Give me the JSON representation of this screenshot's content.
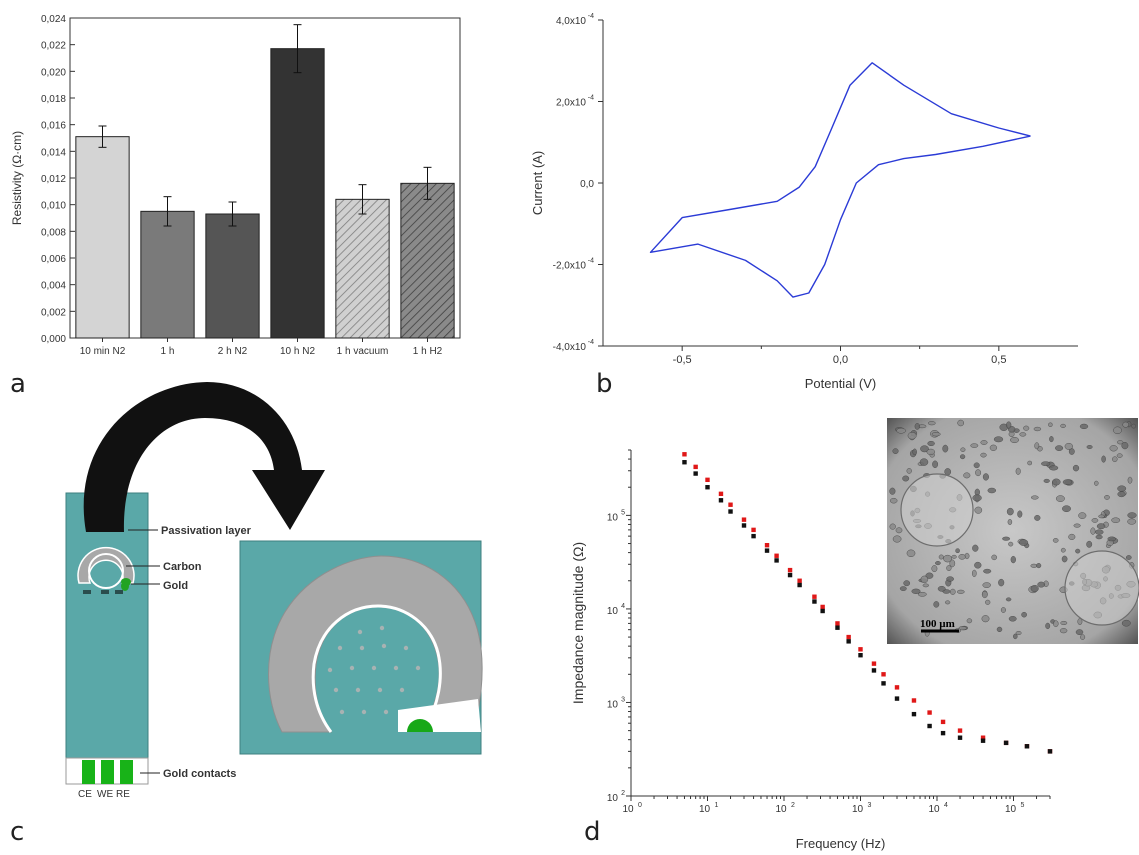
{
  "panel_labels": [
    "a",
    "b",
    "c",
    "d"
  ],
  "chart_data": [
    {
      "type": "bar",
      "panel": "a",
      "categories": [
        "10 min N2",
        "1 h",
        "2 h N2",
        "10 h N2",
        "1 h vacuum",
        "1 h H2"
      ],
      "values": [
        0.0151,
        0.0095,
        0.0093,
        0.0217,
        0.0104,
        0.0116
      ],
      "errors": [
        0.0008,
        0.0011,
        0.0009,
        0.0018,
        0.0011,
        0.0012
      ],
      "fills": [
        "#d4d4d4",
        "#7a7a7a",
        "#555555",
        "#333333",
        "hatch-light",
        "hatch-dark"
      ],
      "ylabel": "Resistivity (Ω·cm)",
      "xlabel": "",
      "ylim": [
        0,
        0.024
      ],
      "yticks": [
        "0,000",
        "0,002",
        "0,004",
        "0,006",
        "0,008",
        "0,010",
        "0,012",
        "0,014",
        "0,016",
        "0,018",
        "0,020",
        "0,022",
        "0,024"
      ]
    },
    {
      "type": "line",
      "panel": "b",
      "series_color": "#2b3bd6",
      "x": [
        0.6,
        0.45,
        0.3,
        0.2,
        0.12,
        0.05,
        0.0,
        -0.05,
        -0.1,
        -0.15,
        -0.2,
        -0.3,
        -0.45,
        -0.6,
        -0.5,
        -0.35,
        -0.2,
        -0.13,
        -0.08,
        -0.03,
        0.03,
        0.1,
        0.2,
        0.35,
        0.5,
        0.6
      ],
      "y": [
        0.000115,
        9e-05,
        7e-05,
        6e-05,
        4.5e-05,
        0.0,
        -9e-05,
        -0.0002,
        -0.00027,
        -0.00028,
        -0.00024,
        -0.00019,
        -0.00015,
        -0.00017,
        -8.5e-05,
        -6.5e-05,
        -4.5e-05,
        -1e-05,
        4e-05,
        0.00013,
        0.00024,
        0.000295,
        0.00024,
        0.00017,
        0.000135,
        0.000115
      ],
      "xlabel": "Potential (V)",
      "ylabel": "Current (A)",
      "xlim": [
        -0.75,
        0.75
      ],
      "ylim": [
        -0.0004,
        0.0004
      ],
      "xticks": [
        "-0,5",
        "0,0",
        "0,5"
      ],
      "yticks": [
        "-4,0x10",
        "-2,0x10",
        "0,0",
        "2,0x10",
        "4,0x10"
      ],
      "ytick_exponent": "-4"
    },
    {
      "type": "scatter",
      "panel": "d",
      "scale": "log-log",
      "xlabel": "Frequency (Hz)",
      "ylabel": "Impedance magnitude (Ω)",
      "xlim": [
        1,
        300000
      ],
      "ylim": [
        100,
        500000
      ],
      "xtick_exponents": [
        "0",
        "1",
        "2",
        "3",
        "4",
        "5"
      ],
      "ytick_exponents": [
        "2",
        "3",
        "4",
        "5"
      ],
      "tick_base": "10",
      "series": [
        {
          "color": "#e01818",
          "x": [
            5,
            7,
            10,
            15,
            20,
            30,
            40,
            60,
            80,
            120,
            160,
            250,
            320,
            500,
            700,
            1000,
            1500,
            2000,
            3000,
            5000,
            8000,
            12000,
            20000,
            40000,
            80000,
            150000,
            300000
          ],
          "y": [
            450000,
            330000,
            240000,
            170000,
            130000,
            90000,
            70000,
            48000,
            37000,
            26000,
            20000,
            13500,
            10500,
            7000,
            5000,
            3700,
            2600,
            2000,
            1450,
            1050,
            780,
            620,
            500,
            420,
            370,
            340,
            300
          ]
        },
        {
          "color": "#111111",
          "x": [
            5,
            7,
            10,
            15,
            20,
            30,
            40,
            60,
            80,
            120,
            160,
            250,
            320,
            500,
            700,
            1000,
            1500,
            2000,
            3000,
            5000,
            8000,
            12000,
            20000,
            40000,
            80000,
            150000,
            300000
          ],
          "y": [
            370000,
            280000,
            200000,
            145000,
            110000,
            78000,
            60000,
            42000,
            33000,
            23000,
            18000,
            12000,
            9500,
            6300,
            4500,
            3200,
            2200,
            1600,
            1100,
            750,
            560,
            470,
            420,
            390,
            370,
            340,
            300
          ]
        }
      ]
    }
  ],
  "diagram_c": {
    "labels": {
      "passivation": "Passivation layer",
      "carbon": "Carbon",
      "gold": "Gold",
      "gold_contacts": "Gold contacts",
      "contacts": [
        "CE",
        "WE",
        "RE"
      ]
    },
    "colors": {
      "substrate": "#5aa8a8",
      "carbon": "#a8a8a8",
      "gold": "#22a322"
    }
  },
  "micrograph": {
    "scale_bar": "100 µm"
  }
}
